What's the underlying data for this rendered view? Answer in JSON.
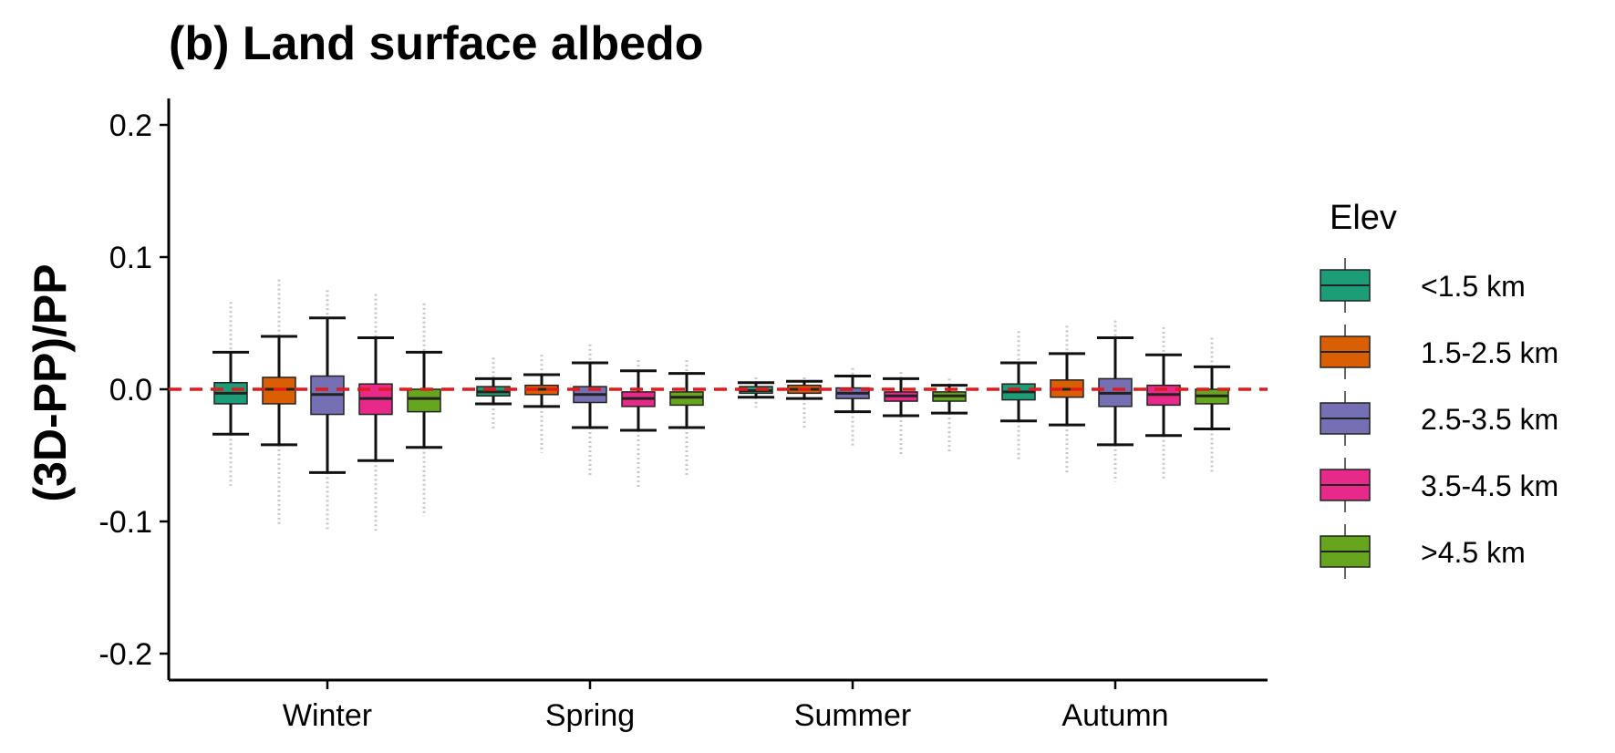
{
  "chart_data": {
    "type": "boxplot",
    "title": "(b) Land surface albedo",
    "ylabel": "(3D-PP)/PP",
    "xlabel": "",
    "ylim": [
      -0.22,
      0.22
    ],
    "yticks": [
      0.2,
      0.1,
      0.0,
      -0.1,
      -0.2
    ],
    "ytick_labels": [
      "0.2",
      "0.1",
      "0.0",
      "-0.1",
      "-0.2"
    ],
    "categories": [
      "Winter",
      "Spring",
      "Summer",
      "Autumn"
    ],
    "reference_line": {
      "y": 0,
      "color": "#e31a1c",
      "style": "dashed"
    },
    "legend": {
      "title": "Elev",
      "position": "right"
    },
    "series": [
      {
        "name": "<1.5 km",
        "color": "#1b9e77",
        "boxes": [
          {
            "whisker_low": -0.034,
            "q1": -0.011,
            "median": -0.003,
            "q3": 0.005,
            "whisker_high": 0.028,
            "out_low": -0.073,
            "out_high": 0.066
          },
          {
            "whisker_low": -0.011,
            "q1": -0.005,
            "median": -0.002,
            "q3": 0.002,
            "whisker_high": 0.008,
            "out_low": -0.03,
            "out_high": 0.024
          },
          {
            "whisker_low": -0.006,
            "q1": -0.003,
            "median": -0.001,
            "q3": 0.002,
            "whisker_high": 0.005,
            "out_low": -0.014,
            "out_high": 0.009
          },
          {
            "whisker_low": -0.024,
            "q1": -0.008,
            "median": -0.002,
            "q3": 0.004,
            "whisker_high": 0.02,
            "out_low": -0.055,
            "out_high": 0.044
          }
        ]
      },
      {
        "name": "1.5-2.5 km",
        "color": "#d95f02",
        "boxes": [
          {
            "whisker_low": -0.042,
            "q1": -0.011,
            "median": 0.0,
            "q3": 0.009,
            "whisker_high": 0.04,
            "out_low": -0.102,
            "out_high": 0.083
          },
          {
            "whisker_low": -0.013,
            "q1": -0.004,
            "median": 0.0,
            "q3": 0.003,
            "whisker_high": 0.011,
            "out_low": -0.048,
            "out_high": 0.026
          },
          {
            "whisker_low": -0.007,
            "q1": -0.003,
            "median": 0.0,
            "q3": 0.003,
            "whisker_high": 0.006,
            "out_low": -0.03,
            "out_high": 0.009
          },
          {
            "whisker_low": -0.027,
            "q1": -0.006,
            "median": 0.0,
            "q3": 0.007,
            "whisker_high": 0.027,
            "out_low": -0.063,
            "out_high": 0.048
          }
        ]
      },
      {
        "name": "2.5-3.5 km",
        "color": "#7570b3",
        "boxes": [
          {
            "whisker_low": -0.063,
            "q1": -0.019,
            "median": -0.004,
            "q3": 0.01,
            "whisker_high": 0.054,
            "out_low": -0.106,
            "out_high": 0.075
          },
          {
            "whisker_low": -0.029,
            "q1": -0.01,
            "median": -0.004,
            "q3": 0.002,
            "whisker_high": 0.02,
            "out_low": -0.066,
            "out_high": 0.034
          },
          {
            "whisker_low": -0.017,
            "q1": -0.007,
            "median": -0.003,
            "q3": 0.001,
            "whisker_high": 0.01,
            "out_low": -0.044,
            "out_high": 0.016
          },
          {
            "whisker_low": -0.042,
            "q1": -0.013,
            "median": -0.003,
            "q3": 0.008,
            "whisker_high": 0.039,
            "out_low": -0.07,
            "out_high": 0.052
          }
        ]
      },
      {
        "name": "3.5-4.5 km",
        "color": "#e7298a",
        "boxes": [
          {
            "whisker_low": -0.054,
            "q1": -0.019,
            "median": -0.007,
            "q3": 0.004,
            "whisker_high": 0.039,
            "out_low": -0.107,
            "out_high": 0.072
          },
          {
            "whisker_low": -0.031,
            "q1": -0.013,
            "median": -0.007,
            "q3": -0.002,
            "whisker_high": 0.014,
            "out_low": -0.075,
            "out_high": 0.022
          },
          {
            "whisker_low": -0.02,
            "q1": -0.009,
            "median": -0.005,
            "q3": -0.002,
            "whisker_high": 0.008,
            "out_low": -0.05,
            "out_high": 0.013
          },
          {
            "whisker_low": -0.035,
            "q1": -0.012,
            "median": -0.004,
            "q3": 0.003,
            "whisker_high": 0.026,
            "out_low": -0.069,
            "out_high": 0.047
          }
        ]
      },
      {
        "name": ">4.5 km",
        "color": "#66a61e",
        "boxes": [
          {
            "whisker_low": -0.044,
            "q1": -0.017,
            "median": -0.007,
            "q3": 0.0,
            "whisker_high": 0.028,
            "out_low": -0.096,
            "out_high": 0.065
          },
          {
            "whisker_low": -0.029,
            "q1": -0.012,
            "median": -0.006,
            "q3": -0.002,
            "whisker_high": 0.012,
            "out_low": -0.067,
            "out_high": 0.022
          },
          {
            "whisker_low": -0.018,
            "q1": -0.009,
            "median": -0.005,
            "q3": -0.002,
            "whisker_high": 0.003,
            "out_low": -0.048,
            "out_high": 0.008
          },
          {
            "whisker_low": -0.03,
            "q1": -0.011,
            "median": -0.005,
            "q3": 0.0,
            "whisker_high": 0.017,
            "out_low": -0.064,
            "out_high": 0.039
          }
        ]
      }
    ]
  }
}
